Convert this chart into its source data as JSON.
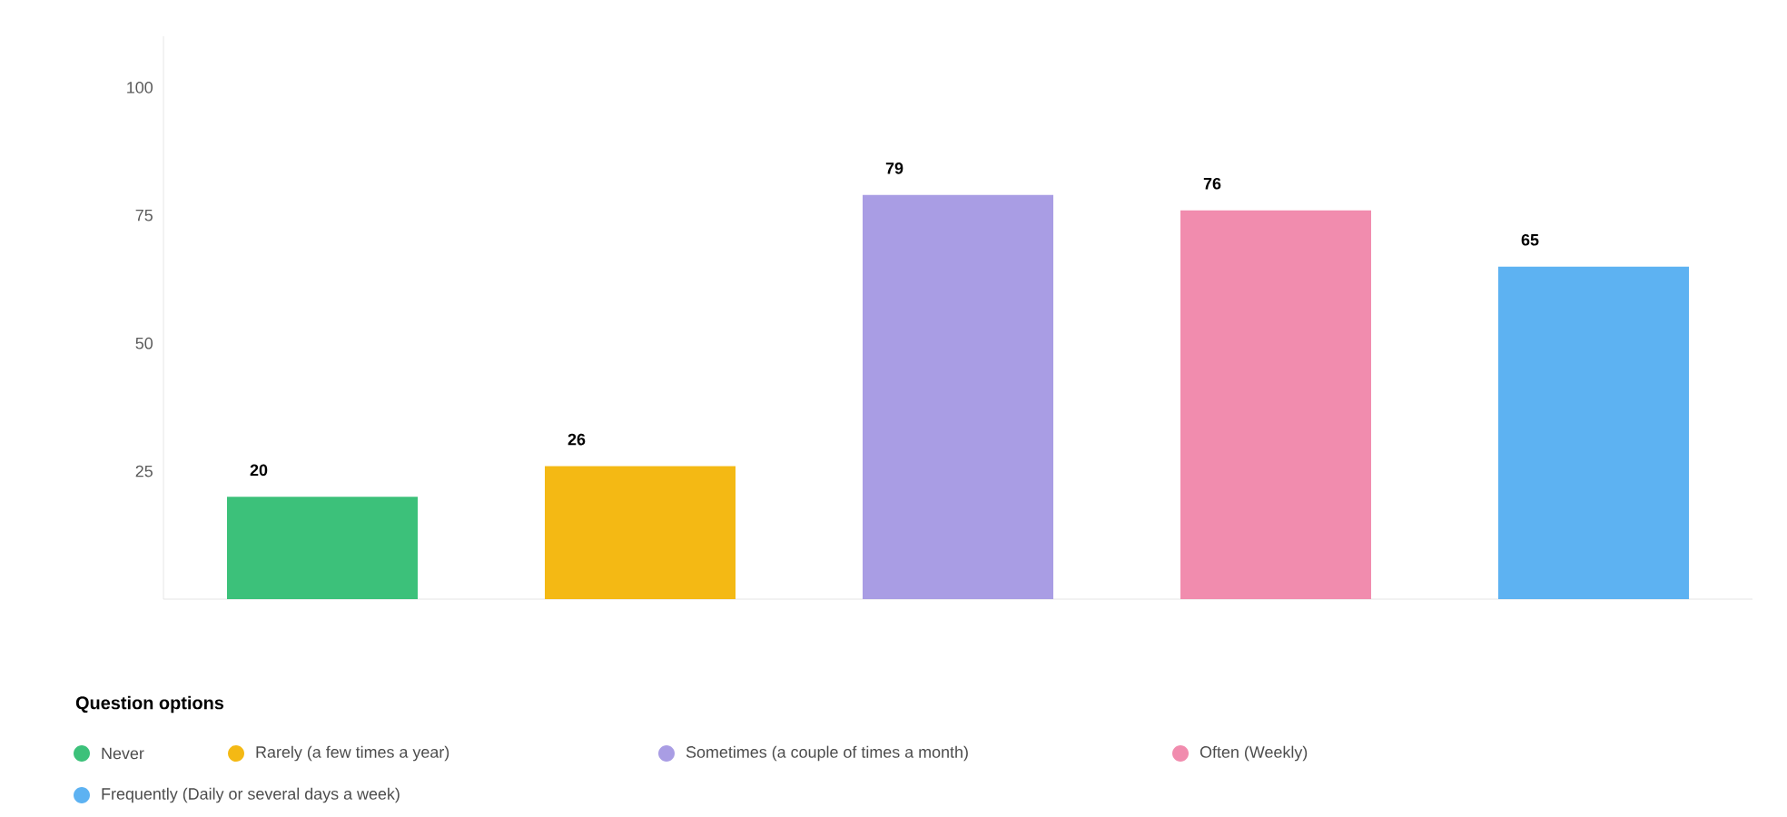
{
  "chart_data": {
    "type": "bar",
    "legend_title": "Question options",
    "categories": [
      null,
      null,
      null,
      null,
      null
    ],
    "series": [
      {
        "name": "Never",
        "color": "#3cc17a",
        "values": [
          20,
          null,
          null,
          null,
          null
        ]
      },
      {
        "name": "Rarely (a few times a year)",
        "color": "#f4b914",
        "values": [
          null,
          26,
          null,
          null,
          null
        ]
      },
      {
        "name": "Sometimes (a couple of times a month)",
        "color": "#a99de4",
        "values": [
          null,
          null,
          79,
          null,
          null
        ]
      },
      {
        "name": "Often (Weekly)",
        "color": "#f18cae",
        "values": [
          null,
          null,
          null,
          76,
          null
        ]
      },
      {
        "name": "Frequently (Daily or several days a week)",
        "color": "#5db2f2",
        "values": [
          null,
          null,
          null,
          null,
          65
        ]
      }
    ],
    "ylim": [
      0,
      110
    ],
    "yticks": [
      25,
      50,
      75,
      100
    ],
    "data_labels": true,
    "legend": "bottom",
    "tick_labels": "y"
  }
}
